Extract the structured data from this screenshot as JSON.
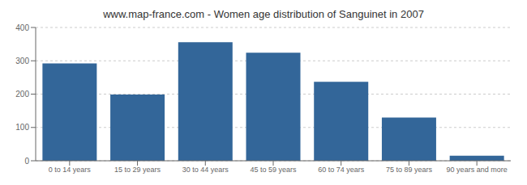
{
  "chart_data": {
    "type": "bar",
    "title": "www.map-france.com - Women age distribution of Sanguinet in 2007",
    "categories": [
      "0 to 14 years",
      "15 to 29 years",
      "30 to 44 years",
      "45 to 59 years",
      "60 to 74 years",
      "75 to 89 years",
      "90 years and more"
    ],
    "values": [
      292,
      199,
      356,
      324,
      237,
      130,
      15
    ],
    "color": "#336699",
    "ylim": [
      0,
      400
    ],
    "yticks": [
      0,
      100,
      200,
      300,
      400
    ],
    "grid": true
  }
}
